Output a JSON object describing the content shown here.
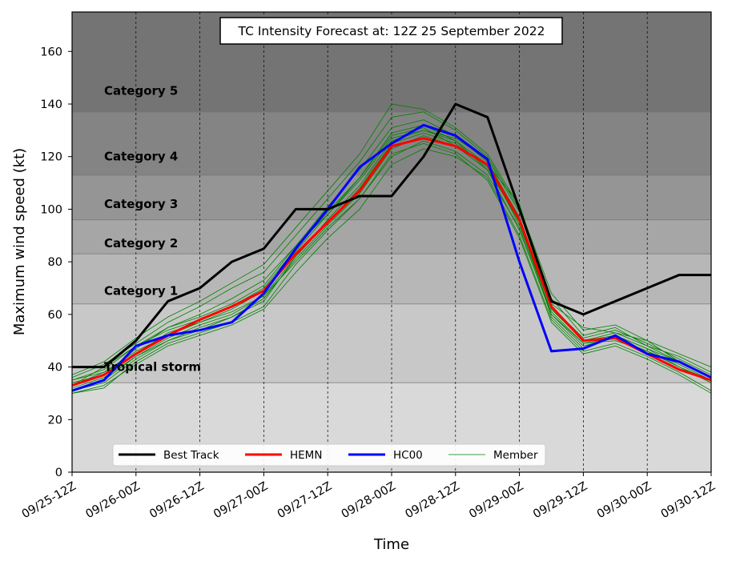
{
  "chart_data": {
    "type": "line",
    "title": "TC Intensity Forecast at: 12Z 25 September 2022",
    "xlabel": "Time",
    "ylabel": "Maximum wind speed (kt)",
    "ylim": [
      0,
      175
    ],
    "yticks": [
      0,
      20,
      40,
      60,
      80,
      100,
      120,
      140,
      160
    ],
    "xlim": [
      0,
      120
    ],
    "grid": "vertical-dashed",
    "legend_position": "bottom-center",
    "x_tick_labels": [
      "09/25-12Z",
      "09/26-00Z",
      "09/26-12Z",
      "09/27-00Z",
      "09/27-12Z",
      "09/28-00Z",
      "09/28-12Z",
      "09/29-00Z",
      "09/29-12Z",
      "09/30-00Z",
      "09/30-12Z"
    ],
    "x_tick_hours": [
      0,
      12,
      24,
      36,
      48,
      60,
      72,
      84,
      96,
      108,
      120
    ],
    "category_bands": [
      {
        "label": "",
        "from": 0,
        "to": 34,
        "color": "#d9d9d9"
      },
      {
        "label": "Tropical storm",
        "from": 34,
        "to": 64,
        "color": "#c8c8c8"
      },
      {
        "label": "Category 1",
        "from": 64,
        "to": 83,
        "color": "#b7b7b7"
      },
      {
        "label": "Category 2",
        "from": 83,
        "to": 96,
        "color": "#a6a6a6"
      },
      {
        "label": "Category 3",
        "from": 96,
        "to": 113,
        "color": "#959595"
      },
      {
        "label": "Category 4",
        "from": 113,
        "to": 137,
        "color": "#848484"
      },
      {
        "label": "Category 5",
        "from": 137,
        "to": 175,
        "color": "#747474"
      }
    ],
    "x_hours": [
      0,
      6,
      12,
      18,
      24,
      30,
      36,
      42,
      48,
      54,
      60,
      66,
      72,
      78,
      84,
      90,
      96,
      102,
      108,
      114,
      120
    ],
    "series": [
      {
        "name": "Best Track",
        "color": "#000000",
        "values": [
          40,
          40,
          50,
          65,
          70,
          80,
          85,
          100,
          100,
          105,
          105,
          120,
          140,
          135,
          100,
          65,
          60,
          65,
          70,
          75,
          75
        ]
      },
      {
        "name": "HEMN",
        "color": "#ff0000",
        "values": [
          33,
          37,
          45,
          52,
          58,
          63,
          69,
          83,
          95,
          107,
          124,
          127,
          124,
          117,
          96,
          63,
          50,
          51,
          45,
          39,
          35
        ]
      },
      {
        "name": "HC00",
        "color": "#0000ff",
        "values": [
          31,
          35,
          48,
          52,
          54,
          57,
          68,
          85,
          100,
          116,
          125,
          132,
          128,
          119,
          80,
          46,
          47,
          52,
          45,
          42,
          36
        ]
      },
      {
        "name": "Member",
        "color": "#008000",
        "members": [
          [
            33,
            40,
            48,
            55,
            60,
            66,
            73,
            86,
            98,
            112,
            128,
            131,
            124,
            117,
            102,
            64,
            55,
            53,
            50,
            42,
            36
          ],
          [
            35,
            38,
            46,
            52,
            57,
            61,
            67,
            80,
            93,
            104,
            120,
            126,
            122,
            113,
            93,
            61,
            49,
            50,
            46,
            40,
            35
          ],
          [
            31,
            34,
            43,
            50,
            54,
            59,
            65,
            82,
            96,
            109,
            126,
            130,
            127,
            119,
            99,
            66,
            52,
            55,
            48,
            44,
            38
          ],
          [
            36,
            41,
            49,
            57,
            63,
            70,
            76,
            90,
            104,
            118,
            135,
            137,
            130,
            120,
            100,
            62,
            50,
            52,
            47,
            40,
            34
          ],
          [
            30,
            33,
            41,
            48,
            52,
            56,
            62,
            76,
            89,
            100,
            117,
            123,
            120,
            112,
            90,
            58,
            46,
            49,
            44,
            38,
            31
          ],
          [
            34,
            37,
            47,
            55,
            59,
            64,
            71,
            86,
            101,
            115,
            131,
            134,
            128,
            118,
            97,
            63,
            51,
            54,
            49,
            43,
            37
          ],
          [
            32,
            36,
            44,
            51,
            56,
            60,
            67,
            82,
            95,
            108,
            125,
            129,
            125,
            116,
            95,
            60,
            48,
            51,
            46,
            41,
            35
          ],
          [
            37,
            42,
            51,
            59,
            65,
            72,
            79,
            93,
            107,
            121,
            140,
            138,
            131,
            121,
            101,
            68,
            54,
            56,
            50,
            45,
            40
          ],
          [
            30,
            32,
            42,
            49,
            53,
            57,
            63,
            79,
            92,
            104,
            121,
            125,
            121,
            111,
            89,
            57,
            45,
            48,
            43,
            37,
            30
          ],
          [
            35,
            39,
            48,
            54,
            58,
            63,
            70,
            85,
            99,
            112,
            129,
            132,
            126,
            115,
            96,
            59,
            47,
            52,
            47,
            42,
            36
          ],
          [
            33,
            38,
            45,
            53,
            57,
            62,
            69,
            84,
            98,
            111,
            127,
            130,
            126,
            117,
            94,
            62,
            50,
            53,
            48,
            42,
            36
          ],
          [
            31,
            35,
            44,
            50,
            55,
            59,
            66,
            81,
            94,
            106,
            123,
            128,
            124,
            115,
            92,
            60,
            49,
            51,
            46,
            40,
            34
          ]
        ]
      }
    ],
    "legend": [
      "Best Track",
      "HEMN",
      "HC00",
      "Member"
    ]
  }
}
